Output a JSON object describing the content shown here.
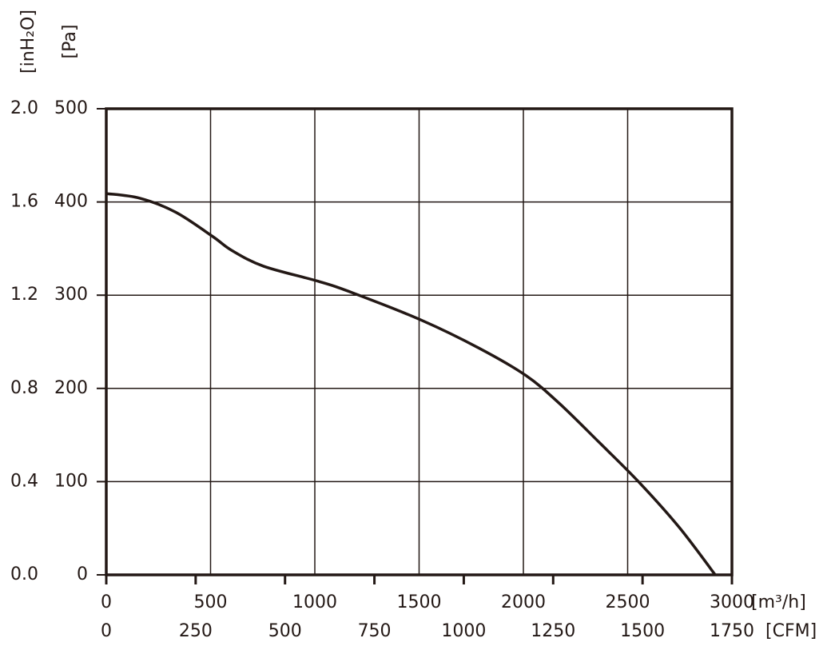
{
  "chart_data": {
    "type": "line",
    "x": [
      0,
      161,
      333,
      510,
      602,
      755,
      1015,
      1176,
      1513,
      1789,
      2011,
      2172,
      2364,
      2556,
      2747,
      2920
    ],
    "series": [
      {
        "color": "#231815",
        "values": [
          409,
          404,
          389,
          363,
          348,
          331,
          315,
          303,
          273,
          243,
          214,
          184,
          142,
          99,
          51,
          0
        ]
      }
    ],
    "xlim": [
      0,
      3000
    ],
    "xticks": [
      0,
      500,
      1000,
      1500,
      2000,
      2500,
      3000
    ],
    "xlabel": "[m³/h]",
    "x2lim": [
      0,
      1750
    ],
    "x2ticks": [
      0,
      250,
      500,
      750,
      1000,
      1250,
      1500,
      1750
    ],
    "x2label": "[CFM]",
    "ylim": [
      0,
      500
    ],
    "yticks": [
      0,
      100,
      200,
      300,
      400,
      500
    ],
    "ylabel": "[Pa]",
    "y2lim": [
      0,
      2
    ],
    "y2ticks": [
      {
        "value": 0,
        "label": "0.0"
      },
      0.4,
      0.8,
      1.2,
      1.6,
      {
        "value": 2,
        "label": "2.0"
      }
    ],
    "y2label": "[inH₂O]",
    "grid": true
  }
}
